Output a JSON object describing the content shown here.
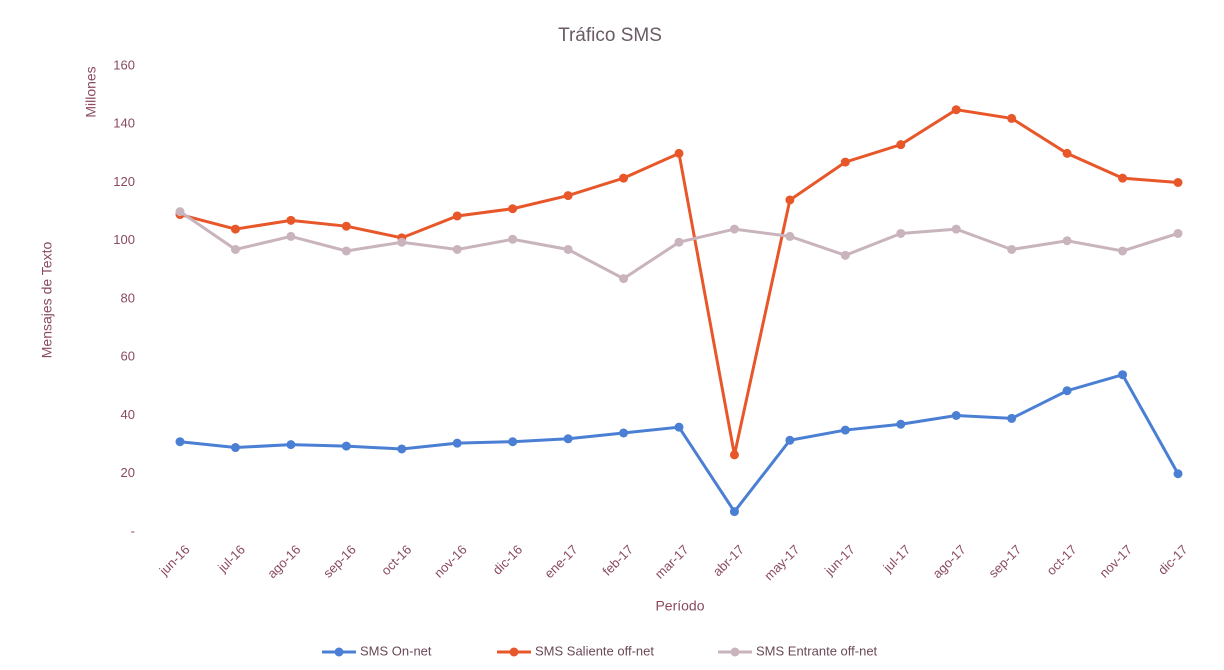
{
  "chart_data": {
    "type": "line",
    "title": "Tráfico SMS",
    "y_axis_label": "Mensajes de Texto",
    "y_axis_unit": "Millones",
    "x_axis_label": "Período",
    "categories": [
      "jun-16",
      "jul-16",
      "ago-16",
      "sep-16",
      "oct-16",
      "nov-16",
      "dic-16",
      "ene-17",
      "feb-17",
      "mar-17",
      "abr-17",
      "may-17",
      "jun-17",
      "jul-17",
      "ago-17",
      "sep-17",
      "oct-17",
      "nov-17",
      "dic-17"
    ],
    "series": [
      {
        "name": "SMS On-net",
        "color": "#4a7fd4",
        "values": [
          31,
          29,
          30,
          29.5,
          28.5,
          30.5,
          31,
          32,
          34,
          36,
          7,
          31.5,
          35,
          37,
          40,
          39,
          48.5,
          54,
          20
        ]
      },
      {
        "name": "SMS Saliente off-net",
        "color": "#e8572a",
        "values": [
          109,
          104,
          107,
          105,
          101,
          108.5,
          111,
          115.5,
          121.5,
          130,
          26.5,
          114,
          127,
          133,
          145,
          142,
          130,
          121.5,
          120
        ]
      },
      {
        "name": "SMS Entrante off-net",
        "color": "#c9b4be",
        "values": [
          110,
          97,
          101.5,
          96.5,
          99.5,
          97,
          100.5,
          97,
          87,
          99.5,
          104,
          101.5,
          95,
          102.5,
          104,
          97,
          100,
          96.5,
          102.5
        ]
      }
    ],
    "ylim": [
      0,
      160
    ],
    "yticks": [
      {
        "value": 0,
        "label": "-"
      },
      20,
      40,
      60,
      80,
      100,
      120,
      140,
      160
    ],
    "legend": "bottom"
  }
}
